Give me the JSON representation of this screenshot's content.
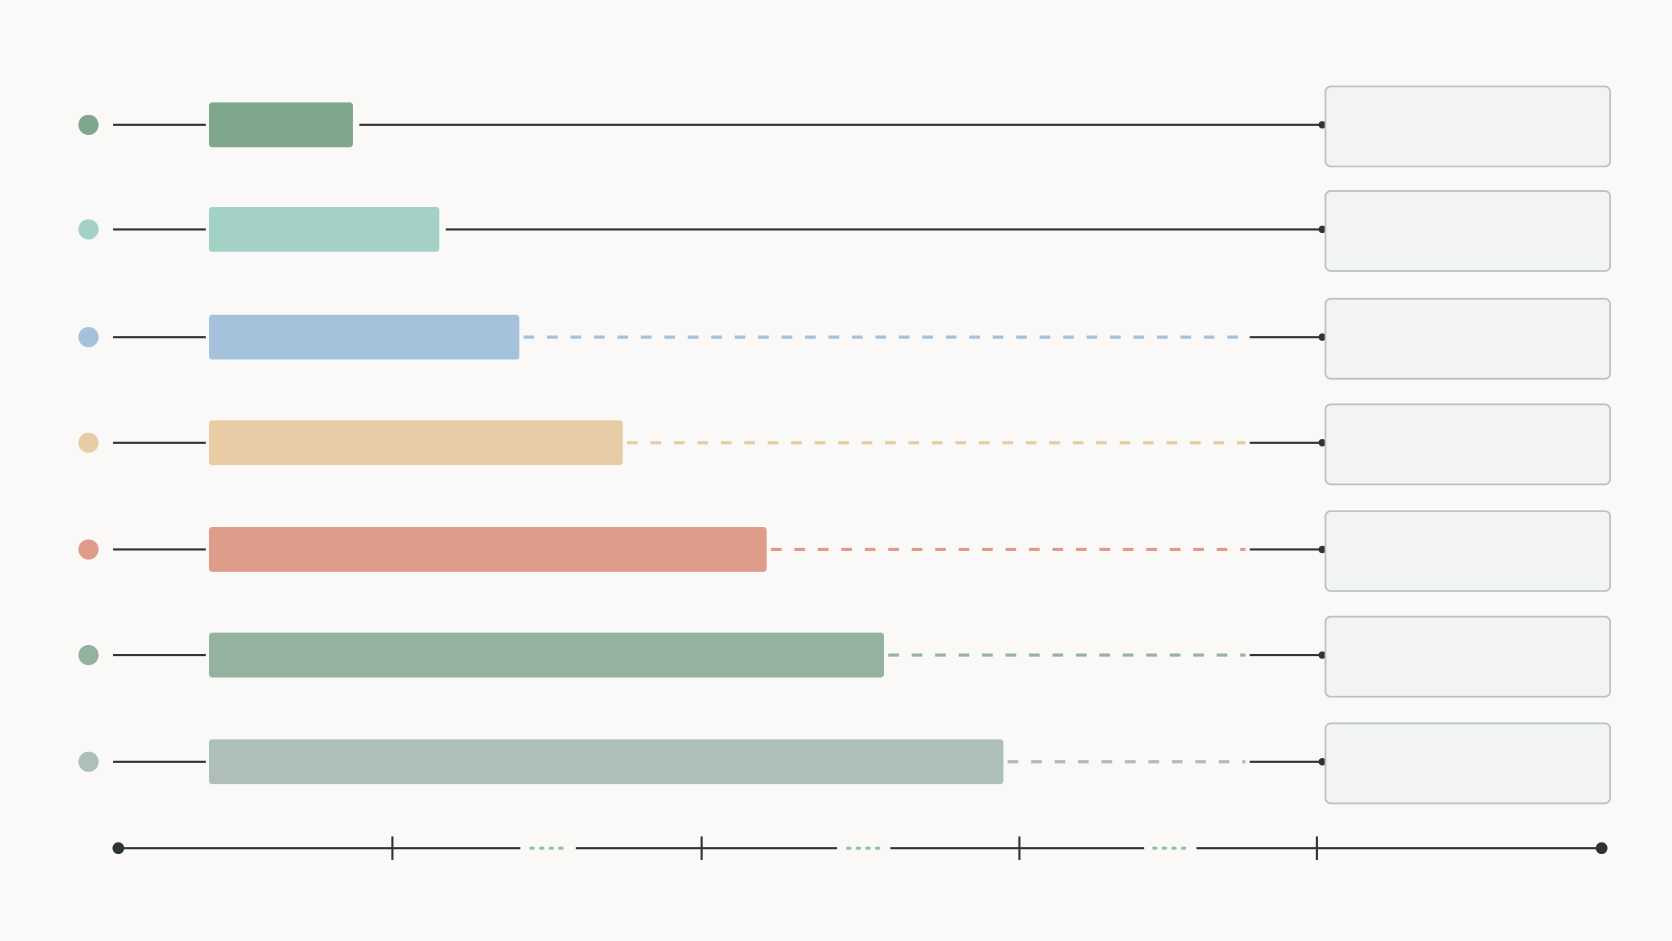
{
  "rows": [
    {
      "color": "#7ea78d"
    },
    {
      "color": "#a3d1c6"
    },
    {
      "color": "#a4c2dc"
    },
    {
      "color": "#e8cca6"
    },
    {
      "color": "#df9c8b"
    },
    {
      "color": "#95b2a1"
    },
    {
      "color": "#adbfb7"
    }
  ]
}
